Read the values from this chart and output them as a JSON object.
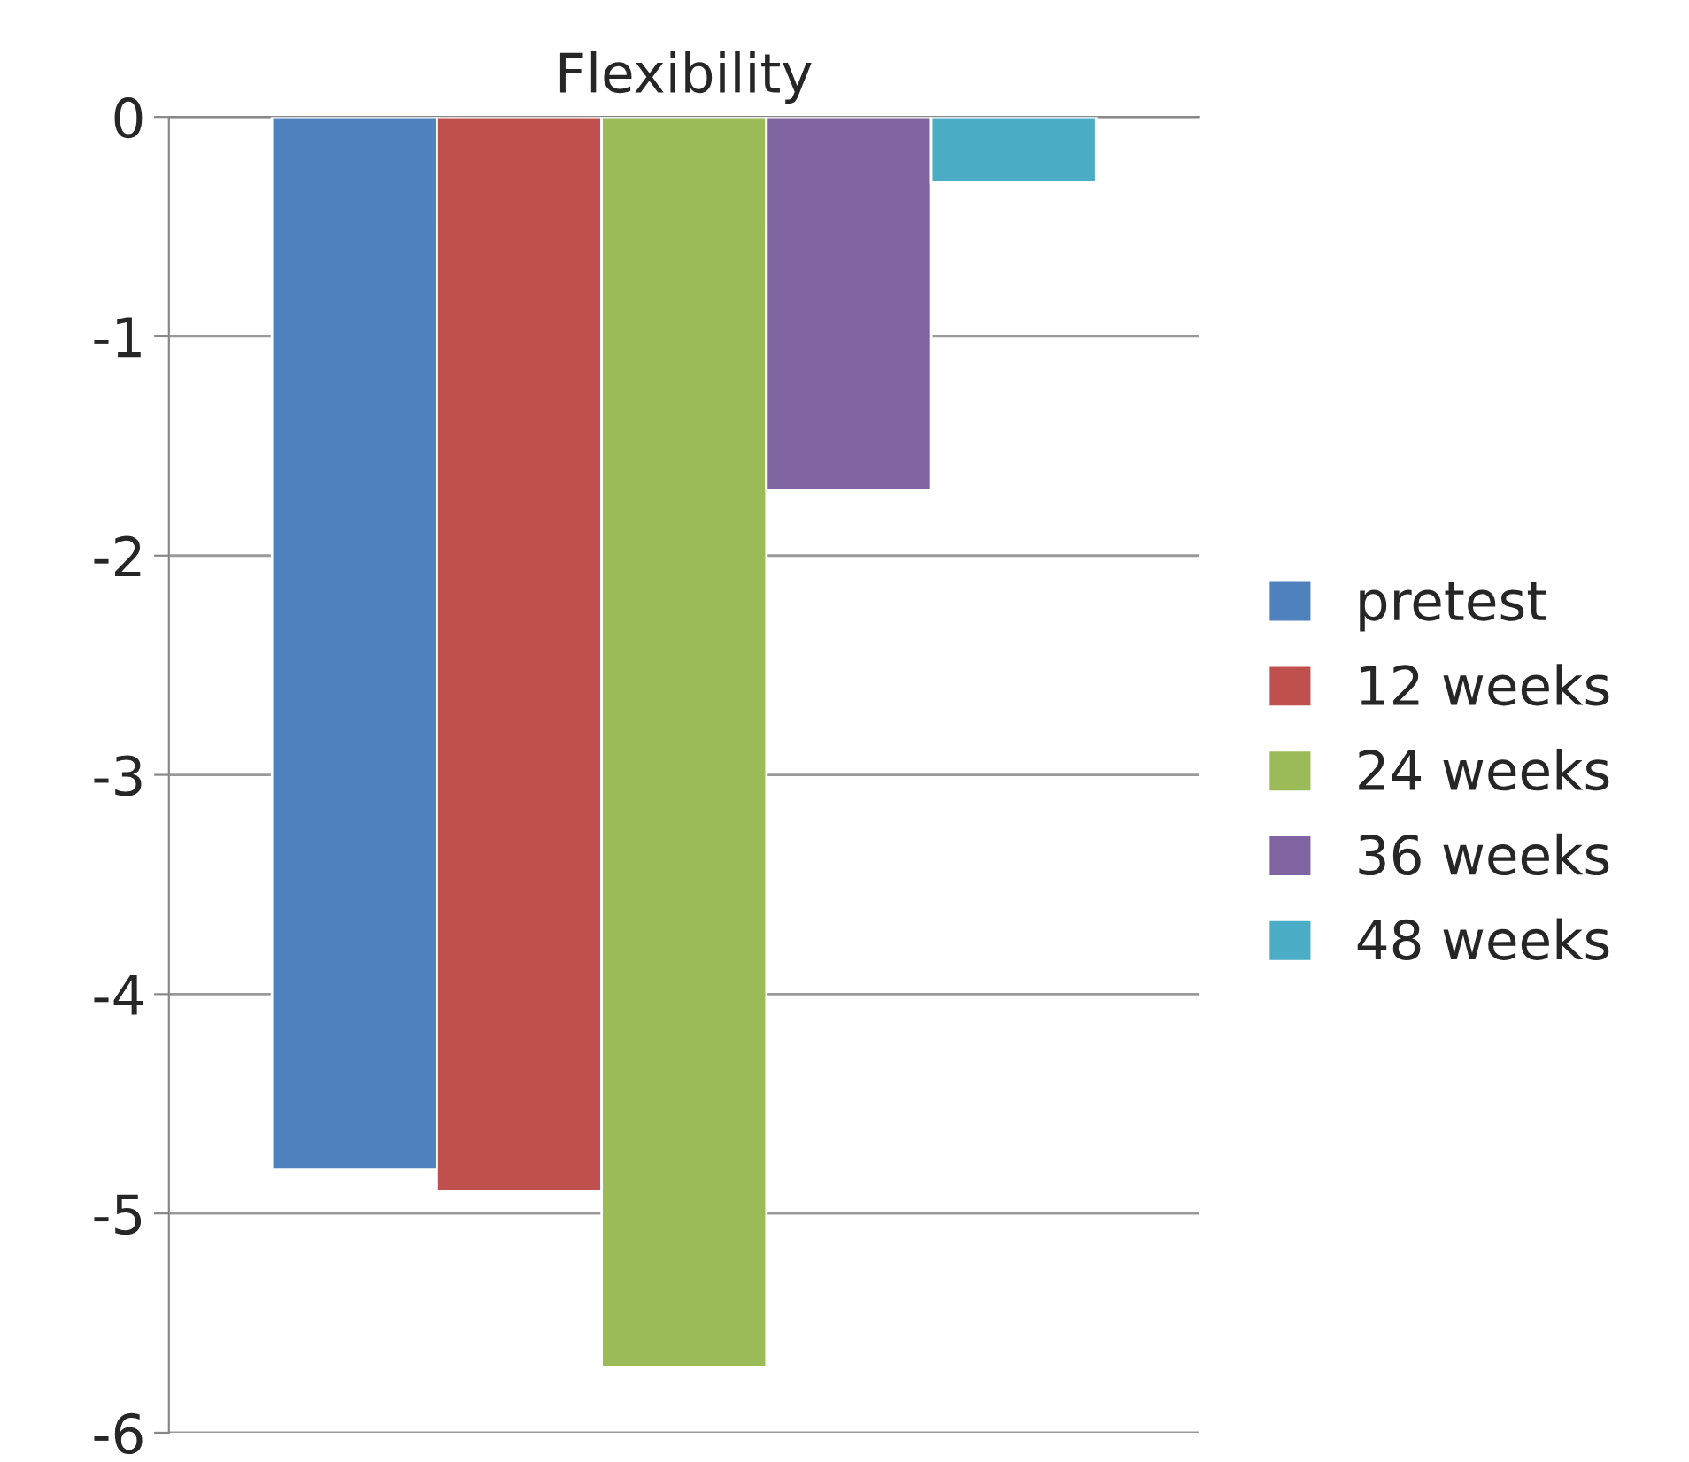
{
  "chart_data": {
    "type": "bar",
    "title": "Flexibility",
    "categories": [
      null
    ],
    "series": [
      {
        "name": "pretest",
        "color": "#4f81bd",
        "values": [
          -4.8
        ]
      },
      {
        "name": "12 weeks",
        "color": "#c0504d",
        "values": [
          -4.9
        ]
      },
      {
        "name": "24 weeks",
        "color": "#9bbb59",
        "values": [
          -5.7
        ]
      },
      {
        "name": "36 weeks",
        "color": "#8064a2",
        "values": [
          -1.7
        ]
      },
      {
        "name": "48 weeks",
        "color": "#4bacc6",
        "values": [
          -0.3
        ]
      }
    ],
    "ylim": [
      -6,
      0
    ],
    "yticks": [
      0,
      -1,
      -2,
      -3,
      -4,
      -5,
      -6
    ],
    "grid": "y",
    "legend": "right"
  }
}
